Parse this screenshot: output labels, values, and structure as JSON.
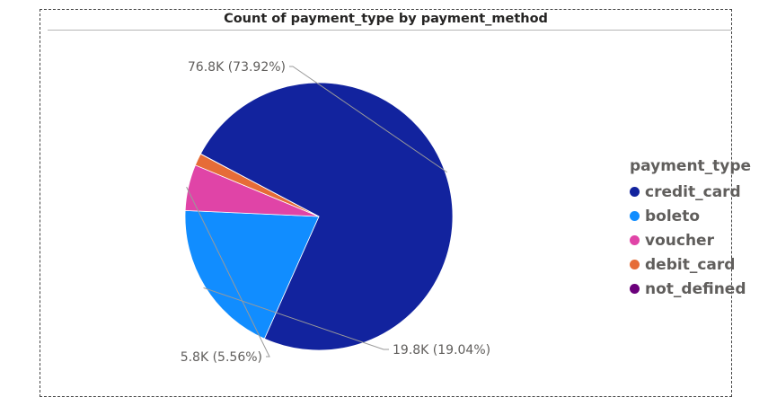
{
  "chart_data": {
    "type": "pie",
    "title": "Count of payment_type by payment_method",
    "legend_title": "payment_type",
    "legend_position": "right",
    "slices": [
      {
        "name": "credit_card",
        "value": 76.8,
        "percent": 73.92,
        "color": "#12239E",
        "label": "76.8K (73.92%)"
      },
      {
        "name": "boleto",
        "value": 19.8,
        "percent": 19.04,
        "color": "#118DFF",
        "label": "19.8K (19.04%)"
      },
      {
        "name": "voucher",
        "value": 5.8,
        "percent": 5.56,
        "color": "#E044A7",
        "label": "5.8K (5.56%)"
      },
      {
        "name": "debit_card",
        "value": 1.5,
        "percent": 1.47,
        "color": "#E66C37",
        "label": ""
      },
      {
        "name": "not_defined",
        "value": 0.0,
        "percent": 0.01,
        "color": "#6B007B",
        "label": ""
      }
    ]
  }
}
